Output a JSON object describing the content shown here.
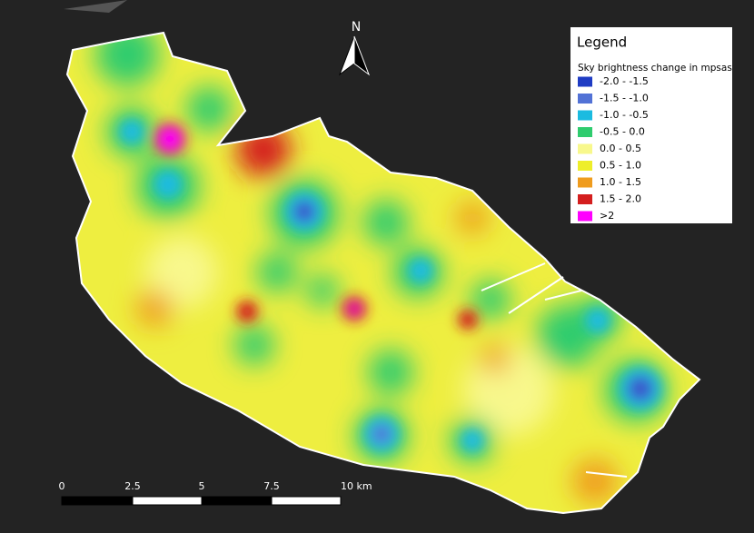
{
  "legend": {
    "title": "Legend",
    "subtitle": "Sky brightness change in mpsas",
    "items": [
      {
        "label": "-2.0 - -1.5",
        "color": "#1f3cc4"
      },
      {
        "label": "-1.5 - -1.0",
        "color": "#5272d6"
      },
      {
        "label": "-1.0 - -0.5",
        "color": "#1bbbe0"
      },
      {
        "label": "-0.5 - 0.0",
        "color": "#2fcc6e"
      },
      {
        "label": "0.0 - 0.5",
        "color": "#f8f88c"
      },
      {
        "label": "0.5 - 1.0",
        "color": "#eeee2a"
      },
      {
        "label": "1.0 - 1.5",
        "color": "#ef9c1e"
      },
      {
        "label": "1.5 - 2.0",
        "color": "#d41e1e"
      },
      {
        "label": ">2",
        "color": "#ff00ff"
      }
    ]
  },
  "north_arrow": "N",
  "scale_bar": [
    "0",
    "2.5",
    "5",
    "7.5",
    "10 km"
  ]
}
